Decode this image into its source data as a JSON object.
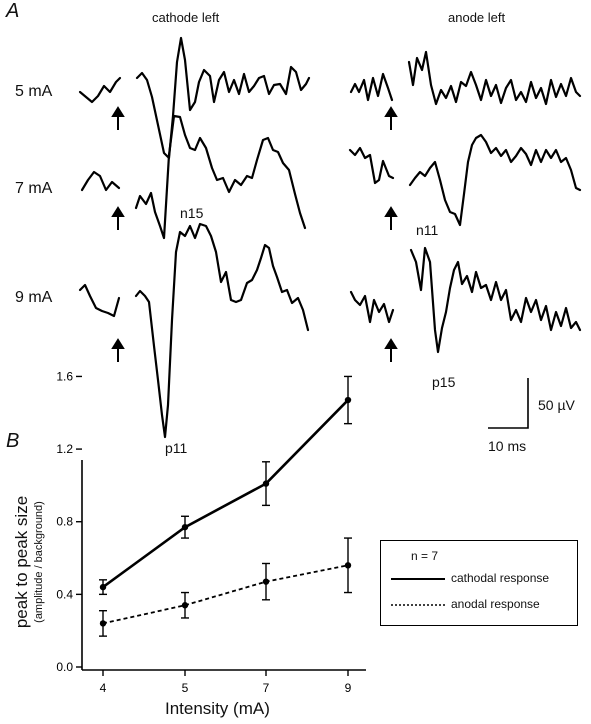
{
  "panel_a": {
    "letter": "A",
    "columns": [
      "cathode left",
      "anode left"
    ],
    "rows": [
      "5 mA",
      "7 mA",
      "9 mA"
    ],
    "peak_labels": {
      "n15": "n15",
      "p11": "p11",
      "n11": "n11",
      "p15": "p15"
    },
    "scalebar": {
      "voltage": "50 µV",
      "time": "10 ms"
    }
  },
  "panel_b": {
    "letter": "B",
    "legend": {
      "n": "n = 7",
      "cathodal": "cathodal response",
      "anodal": "anodal response"
    }
  },
  "chart_data": {
    "type": "line",
    "x": [
      4,
      5,
      7,
      9
    ],
    "xtick_labels": [
      "4",
      "5",
      "7",
      "9"
    ],
    "ytick_labels": [
      "0.0",
      "0.4",
      "0.8",
      "1.2",
      "1.6"
    ],
    "ylim": [
      0,
      1.7
    ],
    "xlabel": "Intensity (mA)",
    "ylabel": "peak to peak size",
    "ylabel_sub": "(amplitude / background)",
    "series": [
      {
        "name": "cathodal response",
        "values": [
          0.44,
          0.77,
          1.01,
          1.47
        ],
        "errors": [
          0.04,
          0.06,
          0.12,
          0.13
        ],
        "style": "solid"
      },
      {
        "name": "anodal response",
        "values": [
          0.24,
          0.34,
          0.47,
          0.56
        ],
        "errors": [
          0.07,
          0.07,
          0.1,
          0.15
        ],
        "style": "dashed"
      }
    ]
  }
}
